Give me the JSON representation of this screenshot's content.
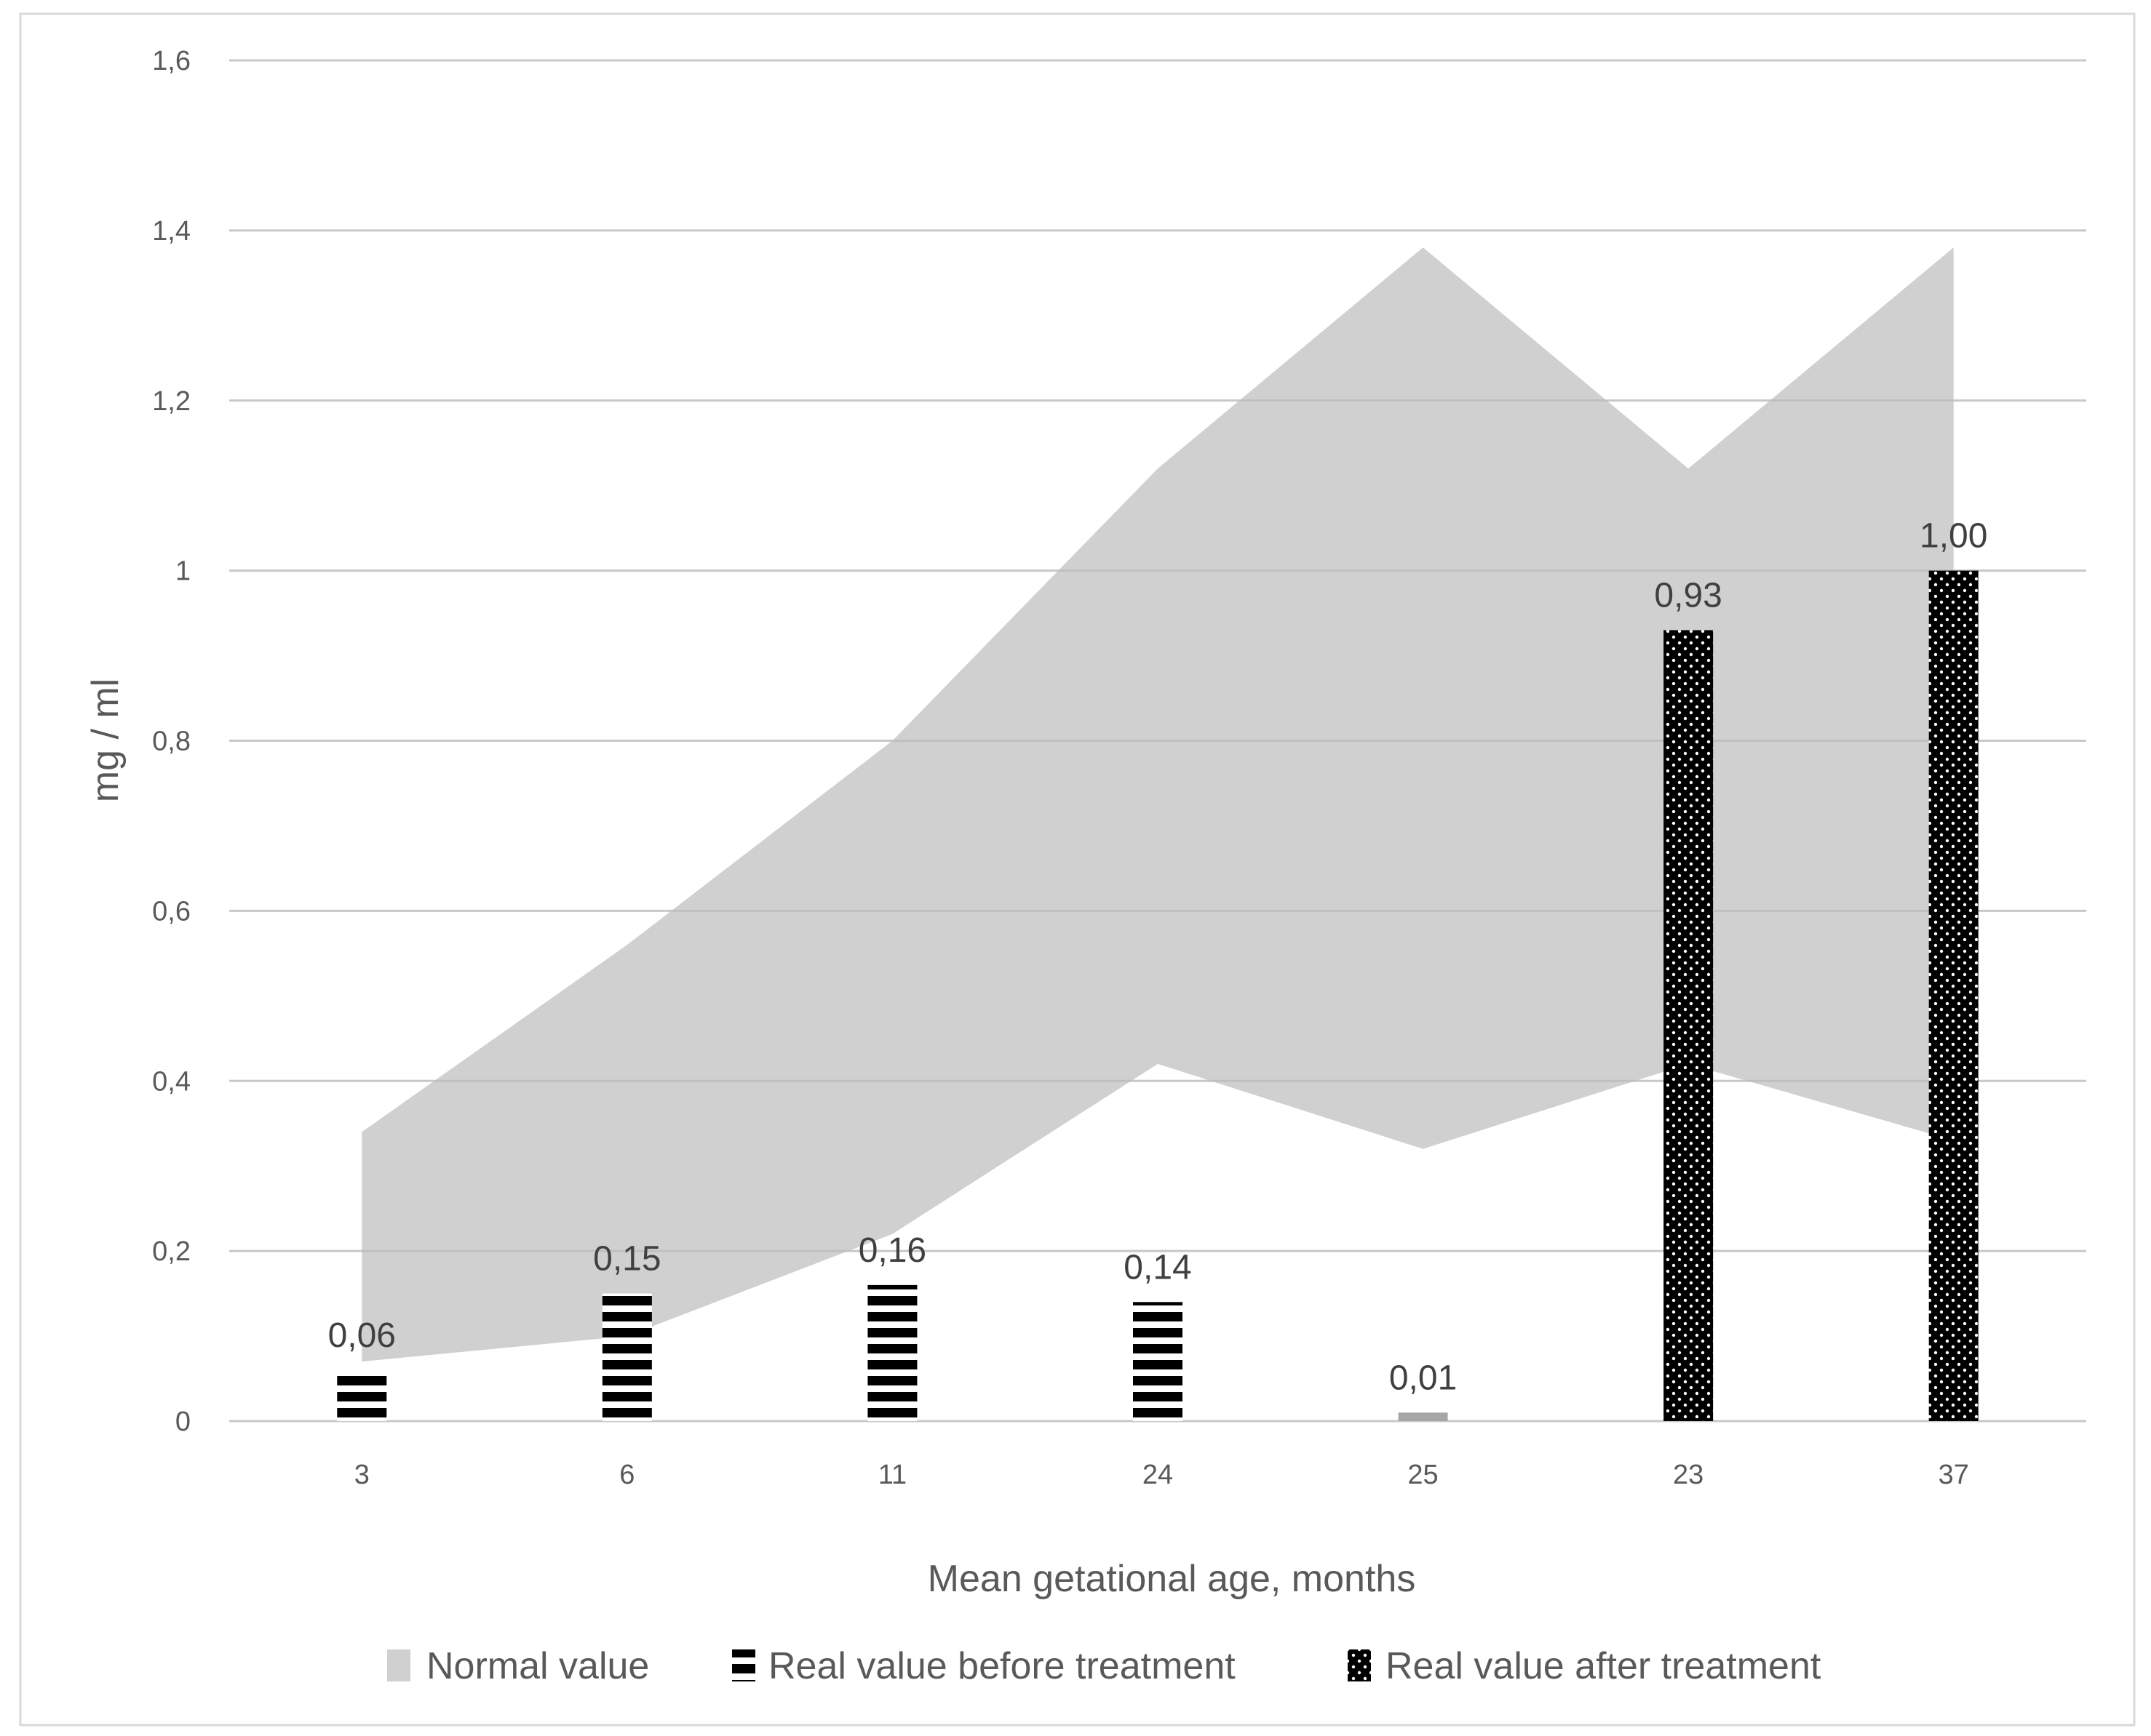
{
  "chart_data": {
    "type": "bar",
    "title": "",
    "xlabel": "Mean getational age, months",
    "ylabel": "mg / ml",
    "ylim": [
      0,
      1.6
    ],
    "yticks": [
      0,
      0.2,
      0.4,
      0.6,
      0.8,
      1,
      1.2,
      1.4,
      1.6
    ],
    "ytick_labels": [
      "0",
      "0,2",
      "0,4",
      "0,6",
      "0,8",
      "1",
      "1,2",
      "1,4",
      "1,6"
    ],
    "categories": [
      "3",
      "6",
      "11",
      "24",
      "25",
      "23",
      "37"
    ],
    "grid": true,
    "legend_position": "bottom",
    "normal_range": {
      "name": "Normal value",
      "type": "area",
      "color": "#d0d0d0",
      "lower": [
        0.07,
        0.1,
        0.22,
        0.42,
        0.32,
        0.42,
        0.33
      ],
      "upper": [
        0.34,
        0.56,
        0.8,
        1.12,
        1.38,
        1.12,
        1.38
      ]
    },
    "series": [
      {
        "name": "Real value before treatment",
        "pattern": "horizontal-stripes",
        "values": [
          0.06,
          0.15,
          0.16,
          0.14,
          0.01,
          null,
          null
        ],
        "labels": [
          "0,06",
          "0,15",
          "0,16",
          "0,14",
          "0,01",
          null,
          null
        ]
      },
      {
        "name": "Real value after treatment",
        "pattern": "dotted-black",
        "values": [
          null,
          null,
          null,
          null,
          null,
          0.93,
          1.0
        ],
        "labels": [
          null,
          null,
          null,
          null,
          null,
          "0,93",
          "1,00"
        ]
      }
    ]
  }
}
